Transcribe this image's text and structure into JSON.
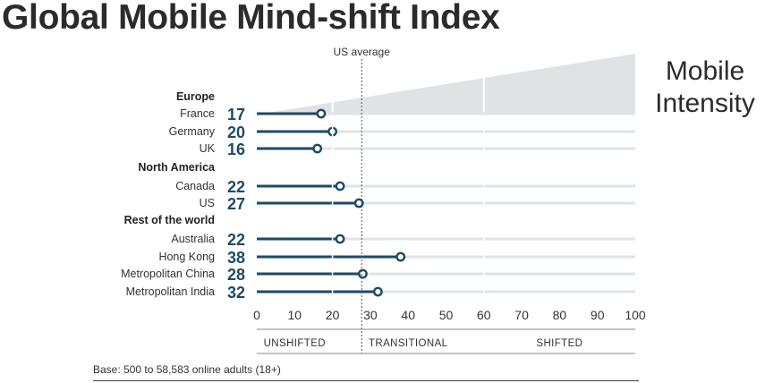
{
  "title": "Global Mobile Mind-shift Index",
  "side_label": "Mobile Intensity",
  "footnote": "Base: 500 to 58,583 online adults (18+)",
  "colors": {
    "bar": "#1d4a66",
    "track": "#dde4ea",
    "wedge": "#dfe3e6",
    "text": "#2b2b2b"
  },
  "chart_data": {
    "type": "lollipop",
    "title": "Global Mobile Mind-shift Index",
    "reference_line": {
      "label": "US average",
      "value": 27
    },
    "xlim": [
      0,
      100
    ],
    "xticks": [
      0,
      10,
      20,
      30,
      40,
      50,
      60,
      70,
      80,
      90,
      100
    ],
    "zones": [
      {
        "label": "UNSHIFTED",
        "from": 0,
        "to": 20
      },
      {
        "label": "TRANSITIONAL",
        "from": 20,
        "to": 60
      },
      {
        "label": "SHIFTED",
        "from": 60,
        "to": 100
      }
    ],
    "groups": [
      {
        "name": "Europe",
        "rows": [
          {
            "label": "France",
            "value": 17
          },
          {
            "label": "Germany",
            "value": 20
          },
          {
            "label": "UK",
            "value": 16
          }
        ]
      },
      {
        "name": "North America",
        "rows": [
          {
            "label": "Canada",
            "value": 22
          },
          {
            "label": "US",
            "value": 27
          }
        ]
      },
      {
        "name": "Rest of the world",
        "rows": [
          {
            "label": "Australia",
            "value": 22
          },
          {
            "label": "Hong Kong",
            "value": 38
          },
          {
            "label": "Metropolitan China",
            "value": 28
          },
          {
            "label": "Metropolitan India",
            "value": 32
          }
        ]
      }
    ]
  }
}
